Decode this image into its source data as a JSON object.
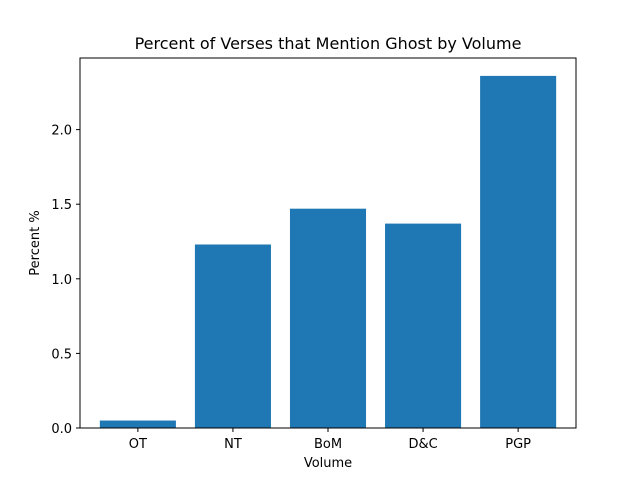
{
  "chart_data": {
    "type": "bar",
    "title": "Percent of Verses that Mention Ghost by Volume",
    "xlabel": "Volume",
    "ylabel": "Percent %",
    "categories": [
      "OT",
      "NT",
      "BoM",
      "D&C",
      "PGP"
    ],
    "values": [
      0.05,
      1.23,
      1.47,
      1.37,
      2.36
    ],
    "ylim": [
      0,
      2.48
    ],
    "yticks": [
      0.0,
      0.5,
      1.0,
      1.5,
      2.0
    ],
    "ytick_labels": [
      "0.0",
      "0.5",
      "1.0",
      "1.5",
      "2.0"
    ],
    "bar_color": "#1f77b4",
    "grid": false,
    "legend": "none"
  }
}
